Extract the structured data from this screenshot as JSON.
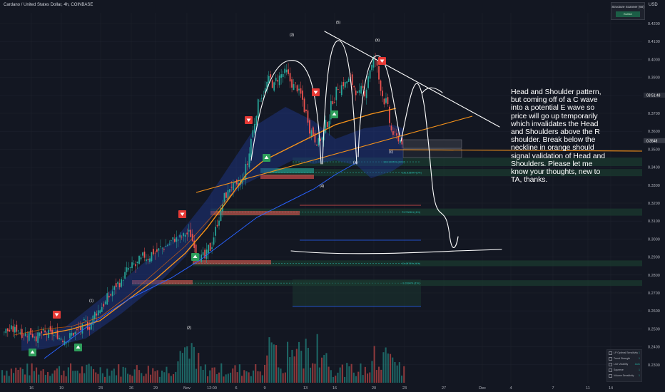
{
  "header": {
    "symbol": "Cardano / United States Dollar, 4h, COINBASE",
    "currency": "USD"
  },
  "indicator_panel": {
    "title": "Structure Scanner (60)",
    "status": "Bullish"
  },
  "annotation": {
    "text": "Head and Shoulder pattern, but coming off of a C wave into a potential E wave so price will go up temporarily which invalidates the Head and Shoulders above the R shoulder.  Break below the neckline in orange should signal validation of Head and Shoulders.  Please let me know your thoughts, new to TA, thanks."
  },
  "legend": {
    "items": [
      {
        "label": "LP Optimal Sensitivity",
        "value": "1"
      },
      {
        "label": "Trend Strength",
        "value": "1"
      },
      {
        "label": "Live Volatility",
        "value": "Auto"
      },
      {
        "label": "Squeeze",
        "value": "1"
      },
      {
        "label": "Volume Sensitivity",
        "value": "1"
      }
    ]
  },
  "colors": {
    "background": "#131722",
    "bull": "#26a69a",
    "bear": "#ef5350",
    "orange": "#f7931a",
    "blue": "#2962ff",
    "drawing": "#ffffff"
  },
  "chart_data": {
    "type": "candlestick",
    "title": "Cardano / United States Dollar, 4h, COINBASE",
    "ylim": [
      0.22,
      0.425
    ],
    "y_ticks": [
      "0.4200",
      "0.4100",
      "0.4000",
      "0.3900",
      "0.3800",
      "0.3700",
      "0.3600",
      "0.3500",
      "0.3400",
      "0.3300",
      "0.3200",
      "0.3100",
      "0.3000",
      "0.2900",
      "0.2800",
      "0.2700",
      "0.2600",
      "0.2500",
      "0.2400",
      "0.2300"
    ],
    "x_ticks": [
      "16",
      "19",
      "23",
      "26",
      "29",
      "Nov",
      "12:00",
      "6",
      "9",
      "13",
      "16",
      "20",
      "23",
      "27",
      "Dec",
      "4",
      "7",
      "11",
      "14"
    ],
    "last_price": "0.3548",
    "last_price_label": "03:51:48",
    "close_series": [
      0.249,
      0.2495,
      0.25,
      0.248,
      0.2475,
      0.247,
      0.2465,
      0.247,
      0.2468,
      0.246,
      0.2455,
      0.245,
      0.247,
      0.248,
      0.25,
      0.252,
      0.256,
      0.26,
      0.264,
      0.268,
      0.272,
      0.276,
      0.28,
      0.283,
      0.285,
      0.288,
      0.29,
      0.292,
      0.293,
      0.295,
      0.297,
      0.299,
      0.3,
      0.301,
      0.303,
      0.298,
      0.292,
      0.289,
      0.295,
      0.305,
      0.315,
      0.325,
      0.33,
      0.328,
      0.332,
      0.342,
      0.36,
      0.375,
      0.382,
      0.388,
      0.385,
      0.39,
      0.392,
      0.388,
      0.385,
      0.38,
      0.37,
      0.36,
      0.355,
      0.356,
      0.365,
      0.378,
      0.385,
      0.387,
      0.388,
      0.385,
      0.38,
      0.382,
      0.395,
      0.4,
      0.385,
      0.376,
      0.36,
      0.356,
      0.3548
    ],
    "fib_levels": [
      {
        "label": "166.3305% (ADV)",
        "value": 0.343
      },
      {
        "label": "131.1155% (1%)",
        "value": 0.337
      },
      {
        "label": "79.7386% (4%)",
        "value": 0.315
      },
      {
        "label": "11.4976% (1%)",
        "value": 0.2865
      },
      {
        "label": "-9.1584% (1%)",
        "value": 0.2755
      }
    ],
    "wave_labels": [
      {
        "label": "(1)",
        "x": "16",
        "value": 0.265
      },
      {
        "label": "(2)",
        "x": "19",
        "value": 0.25
      },
      {
        "label": "(3)",
        "x": "9",
        "value": 0.413
      },
      {
        "label": "(4)",
        "x": "13",
        "value": 0.329
      },
      {
        "label": "(5)",
        "x": "16",
        "value": 0.42
      },
      {
        "label": "(a)",
        "x": "16",
        "value": 0.342
      },
      {
        "label": "(b)",
        "x": "20",
        "value": 0.41
      },
      {
        "label": "(c)",
        "x": "20",
        "value": 0.348
      }
    ],
    "grid": true,
    "legend_placement": "bottom-right"
  }
}
